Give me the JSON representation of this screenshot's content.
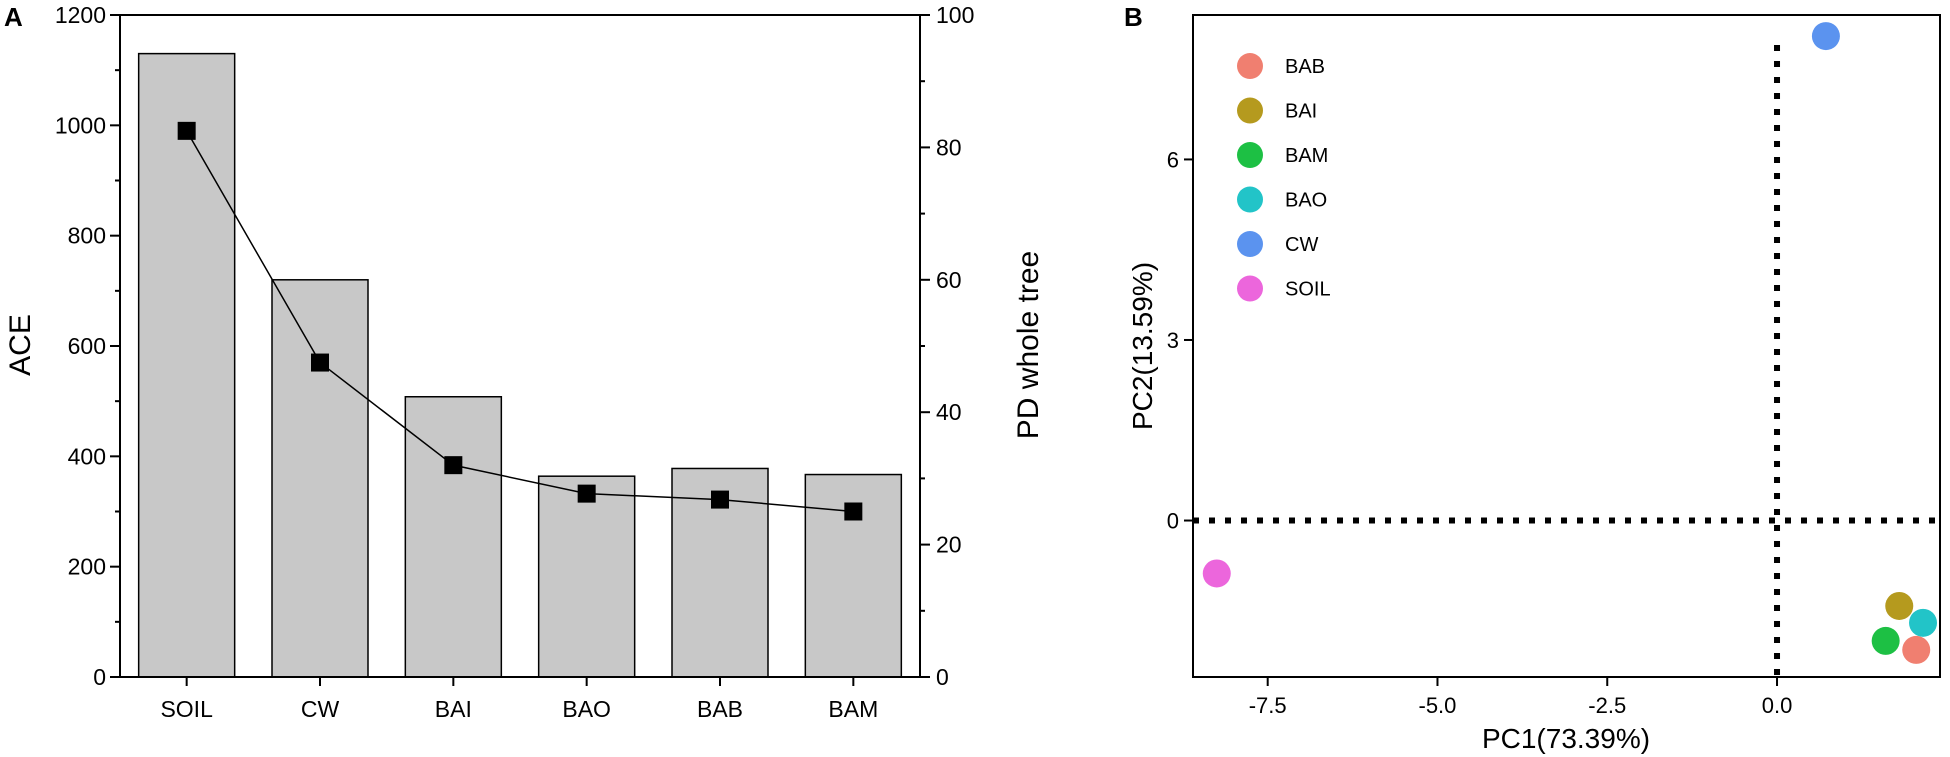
{
  "chart_data": [
    {
      "panel": "A",
      "type": "bar+line",
      "categories": [
        "SOIL",
        "CW",
        "BAI",
        "BAO",
        "BAB",
        "BAM"
      ],
      "series": [
        {
          "name": "ACE",
          "type": "bar",
          "axis": "left",
          "values": [
            1130,
            720,
            508,
            364,
            378,
            367
          ],
          "color": "#c8c8c8"
        },
        {
          "name": "PD whole tree",
          "type": "line",
          "axis": "right",
          "values": [
            82.5,
            47.5,
            32.0,
            27.7,
            26.8,
            25.0
          ],
          "color": "#000000"
        }
      ],
      "ylabel_left": "ACE",
      "ylabel_right": "PD whole tree",
      "ylim_left": [
        0,
        1200
      ],
      "ylim_right": [
        0,
        100
      ],
      "yticks_left": [
        "0",
        "200",
        "400",
        "600",
        "800",
        "1000",
        "1200"
      ],
      "yticks_right": [
        "0",
        "20",
        "40",
        "60",
        "80",
        "100"
      ]
    },
    {
      "panel": "B",
      "type": "scatter",
      "xlabel": "PC1(73.39%)",
      "ylabel": "PC2(13.59%)",
      "xlim": [
        -8.6,
        2.4
      ],
      "ylim": [
        -2.6,
        8.4
      ],
      "xticks": [
        "-7.5",
        "-5.0",
        "-2.5",
        "0.0"
      ],
      "yticks": [
        "0",
        "3",
        "6"
      ],
      "points": [
        {
          "label": "BAB",
          "x": 2.05,
          "y": -2.15,
          "color": "#f07f70"
        },
        {
          "label": "BAI",
          "x": 1.8,
          "y": -1.42,
          "color": "#b59a1e"
        },
        {
          "label": "BAM",
          "x": 1.6,
          "y": -2.0,
          "color": "#1dc044"
        },
        {
          "label": "BAO",
          "x": 2.15,
          "y": -1.7,
          "color": "#22c4c8"
        },
        {
          "label": "CW",
          "x": 0.72,
          "y": 8.05,
          "color": "#5b93ef"
        },
        {
          "label": "SOIL",
          "x": -8.25,
          "y": -0.88,
          "color": "#ec66dc"
        }
      ],
      "legend": [
        "BAB",
        "BAI",
        "BAM",
        "BAO",
        "CW",
        "SOIL"
      ],
      "legend_position": "top-left"
    }
  ],
  "panel_labels": {
    "a": "A",
    "b": "B"
  }
}
